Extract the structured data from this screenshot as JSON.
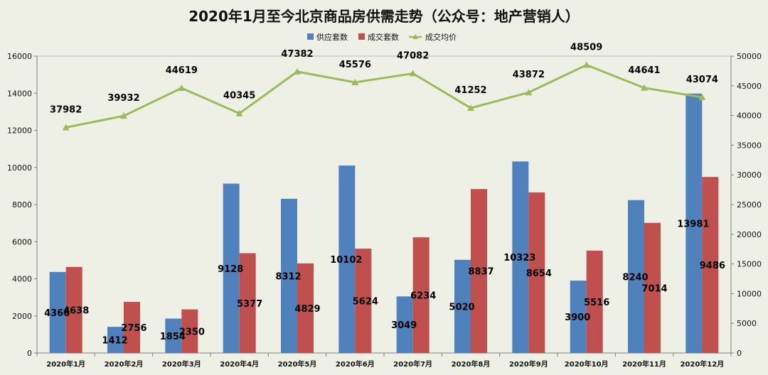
{
  "chart_data": {
    "type": "bar",
    "title": "2020年1月至今北京商品房供需走势（公众号：地产营销人）",
    "categories": [
      "2020年1月",
      "2020年2月",
      "2020年3月",
      "2020年4月",
      "2020年5月",
      "2020年6月",
      "2020年7月",
      "2020年8月",
      "2020年9月",
      "2020年10月",
      "2020年11月",
      "2020年12月"
    ],
    "series": [
      {
        "name": "供应套数",
        "type": "bar",
        "axis": "left",
        "color": "#4f81bd",
        "values": [
          4366,
          1412,
          1854,
          9128,
          8312,
          10102,
          3049,
          5020,
          10323,
          3900,
          8240,
          13981
        ]
      },
      {
        "name": "成交套数",
        "type": "bar",
        "axis": "left",
        "color": "#c0504d",
        "values": [
          4638,
          2756,
          2350,
          5377,
          4829,
          5624,
          6234,
          8837,
          8654,
          5516,
          7014,
          9486
        ]
      },
      {
        "name": "成交均价",
        "type": "line",
        "axis": "right",
        "color": "#9bbb59",
        "values": [
          37982,
          39932,
          44619,
          40345,
          47382,
          45576,
          47082,
          41252,
          43872,
          48509,
          44641,
          43074
        ]
      }
    ],
    "y_left": {
      "min": 0,
      "max": 16000,
      "ticks": [
        0,
        2000,
        4000,
        6000,
        8000,
        10000,
        12000,
        14000,
        16000
      ]
    },
    "y_right": {
      "min": 0,
      "max": 50000,
      "ticks": [
        0,
        5000,
        10000,
        15000,
        20000,
        25000,
        30000,
        35000,
        40000,
        45000,
        50000
      ]
    },
    "legend_position": "top",
    "grid": false
  }
}
